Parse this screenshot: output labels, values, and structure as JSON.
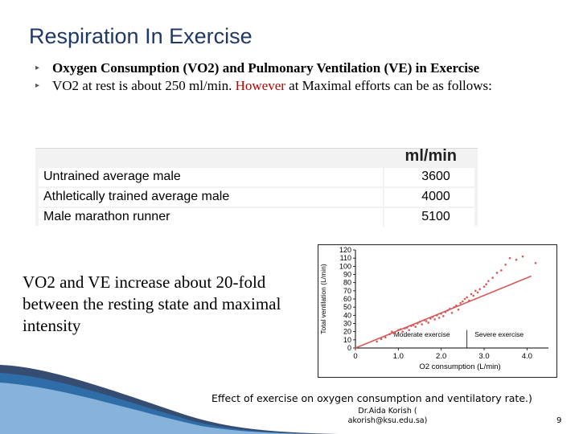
{
  "slide": {
    "title": "Respiration In Exercise",
    "bullets": [
      {
        "text": "Oxygen Consumption (VO2) and Pulmonary Ventilation (VE) in Exercise"
      },
      {
        "text_before": "VO2  at rest is about 250 ml/min. ",
        "highlight": "However",
        "text_after": " at Maximal efforts can be as follows:"
      }
    ],
    "bullet_icon": "bullet-marker-icon",
    "highlight_color": "#c00000",
    "title_color": "#1f3864",
    "body_text": "VO2 and VE increase about 20-fold between the resting state and maximal intensity",
    "caption": "Effect of exercise on oxygen consumption and ventilatory rate.)",
    "footer": "Dr.Aida Korish ( akorish@ksu.edu.sa)",
    "page_number": "9"
  },
  "table": {
    "unit_header": "ml/min",
    "rows": [
      {
        "label": "Untrained average male",
        "value": "3600"
      },
      {
        "label": "Athletically trained average male",
        "value": "4000"
      },
      {
        "label": "Male marathon runner",
        "value": "5100"
      }
    ]
  },
  "chart_data": {
    "type": "scatter",
    "ylabel": "Total ventilation (L/min)",
    "xlabel": "O2 consumption (L/min)",
    "xlim": [
      0,
      4.5
    ],
    "ylim": [
      0,
      120
    ],
    "x_ticks": [
      "0",
      "1.0",
      "2.0",
      "3.0",
      "4.0"
    ],
    "y_ticks": [
      "0",
      "10",
      "20",
      "30",
      "40",
      "50",
      "60",
      "70",
      "80",
      "90",
      "100",
      "110",
      "120"
    ],
    "regions": [
      {
        "label": "Moderate exercise",
        "x_end": 2.6
      },
      {
        "label": "Severe exercise",
        "x_start": 2.6
      }
    ],
    "trend_line": {
      "x": [
        0,
        4.1
      ],
      "y": [
        0,
        88
      ]
    },
    "point_color": "#d65a5a",
    "points": [
      [
        0.5,
        8
      ],
      [
        0.6,
        11
      ],
      [
        0.7,
        13
      ],
      [
        0.8,
        17
      ],
      [
        0.85,
        20
      ],
      [
        0.9,
        18
      ],
      [
        1.0,
        22
      ],
      [
        1.05,
        23
      ],
      [
        1.1,
        20
      ],
      [
        1.15,
        24
      ],
      [
        1.2,
        25
      ],
      [
        1.25,
        22
      ],
      [
        1.3,
        27
      ],
      [
        1.35,
        28
      ],
      [
        1.4,
        26
      ],
      [
        1.45,
        30
      ],
      [
        1.5,
        32
      ],
      [
        1.55,
        29
      ],
      [
        1.6,
        34
      ],
      [
        1.65,
        33
      ],
      [
        1.7,
        31
      ],
      [
        1.75,
        36
      ],
      [
        1.8,
        38
      ],
      [
        1.85,
        35
      ],
      [
        1.9,
        40
      ],
      [
        1.95,
        37
      ],
      [
        2.0,
        42
      ],
      [
        2.05,
        39
      ],
      [
        2.1,
        44
      ],
      [
        2.15,
        46
      ],
      [
        2.2,
        48
      ],
      [
        2.25,
        43
      ],
      [
        2.3,
        50
      ],
      [
        2.35,
        52
      ],
      [
        2.4,
        47
      ],
      [
        2.45,
        55
      ],
      [
        2.5,
        57
      ],
      [
        2.55,
        60
      ],
      [
        2.6,
        62
      ],
      [
        2.65,
        58
      ],
      [
        2.7,
        66
      ],
      [
        2.75,
        64
      ],
      [
        2.8,
        70
      ],
      [
        2.85,
        68
      ],
      [
        2.9,
        72
      ],
      [
        3.0,
        75
      ],
      [
        3.05,
        78
      ],
      [
        3.1,
        82
      ],
      [
        3.2,
        86
      ],
      [
        3.3,
        92
      ],
      [
        3.4,
        95
      ],
      [
        3.5,
        102
      ],
      [
        3.6,
        110
      ],
      [
        3.75,
        108
      ],
      [
        3.9,
        112
      ],
      [
        4.2,
        104
      ]
    ]
  }
}
